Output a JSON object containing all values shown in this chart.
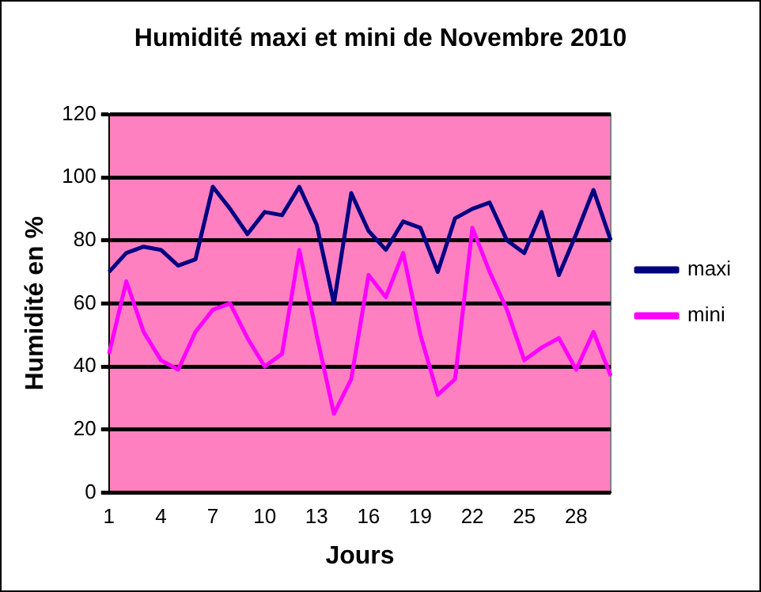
{
  "chart_data": {
    "type": "line",
    "title": "Humidité maxi et mini de Novembre 2010",
    "xlabel": "Jours",
    "ylabel": "Humidité en %",
    "categories": [
      "1",
      null,
      null,
      "4",
      null,
      null,
      "7",
      null,
      null,
      "10",
      null,
      null,
      "13",
      null,
      null,
      "16",
      null,
      null,
      "19",
      null,
      null,
      "22",
      null,
      null,
      "25",
      null,
      null,
      "28",
      null,
      null
    ],
    "series": [
      {
        "name": "maxi",
        "color": "#000080",
        "values": [
          70,
          76,
          78,
          77,
          72,
          74,
          97,
          90,
          82,
          89,
          88,
          97,
          85,
          60,
          95,
          83,
          77,
          86,
          84,
          70,
          87,
          90,
          92,
          80,
          76,
          89,
          69,
          82,
          96,
          80
        ]
      },
      {
        "name": "mini",
        "color": "#ff00ff",
        "values": [
          44,
          67,
          51,
          42,
          39,
          51,
          58,
          60,
          49,
          40,
          44,
          77,
          50,
          25,
          36,
          69,
          62,
          76,
          50,
          31,
          36,
          84,
          70,
          58,
          42,
          46,
          49,
          39,
          51,
          37
        ]
      }
    ],
    "ylim": [
      0,
      120
    ],
    "yticks": [
      0,
      20,
      40,
      60,
      80,
      100,
      120
    ],
    "grid": "y",
    "legend": "right",
    "marker": "none",
    "line_style": "solid"
  }
}
